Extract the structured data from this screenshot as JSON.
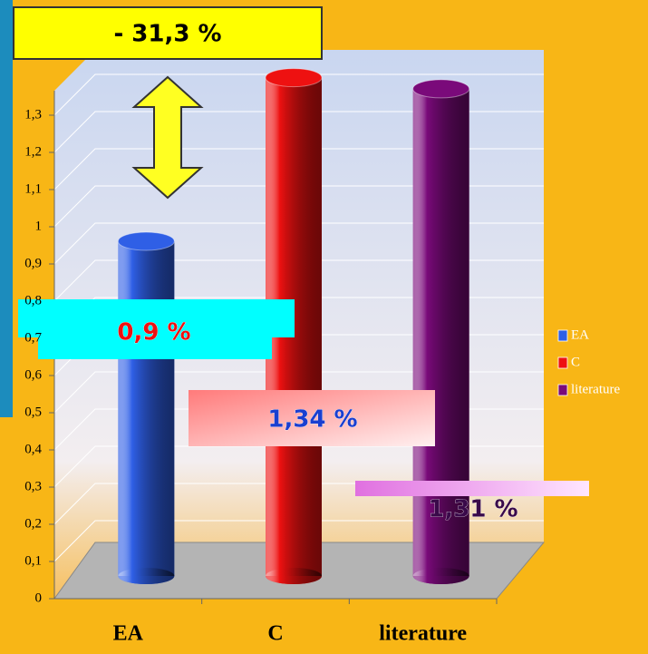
{
  "chart_data": {
    "type": "bar",
    "annotation": "- 31,3 %",
    "categories": [
      "EA",
      "C",
      "literature"
    ],
    "values": [
      0.9,
      1.34,
      1.31
    ],
    "value_labels": [
      "0,9 %",
      "1,34 %",
      "1,31 %"
    ],
    "colors": [
      "#2f5fe6",
      "#ee1111",
      "#7a0a7a"
    ],
    "ylim": [
      0,
      1.4
    ],
    "yticks": [
      0,
      {
        "value": 0.1,
        "label": "0,1"
      },
      {
        "value": 0.2,
        "label": "0,2"
      },
      {
        "value": 0.3,
        "label": "0,3"
      },
      {
        "value": 0.4,
        "label": "0,4"
      },
      {
        "value": 0.5,
        "label": "0,5"
      },
      {
        "value": 0.6,
        "label": "0,6"
      },
      {
        "value": 0.7,
        "label": "0,7"
      },
      {
        "value": 0.8,
        "label": "0,8"
      },
      {
        "value": 0.9,
        "label": "0,9"
      },
      1,
      {
        "value": 1.1,
        "label": "1,1"
      },
      {
        "value": 1.2,
        "label": "1,2"
      },
      {
        "value": 1.3,
        "label": "1,3"
      }
    ],
    "grid": true,
    "legend": "right"
  }
}
